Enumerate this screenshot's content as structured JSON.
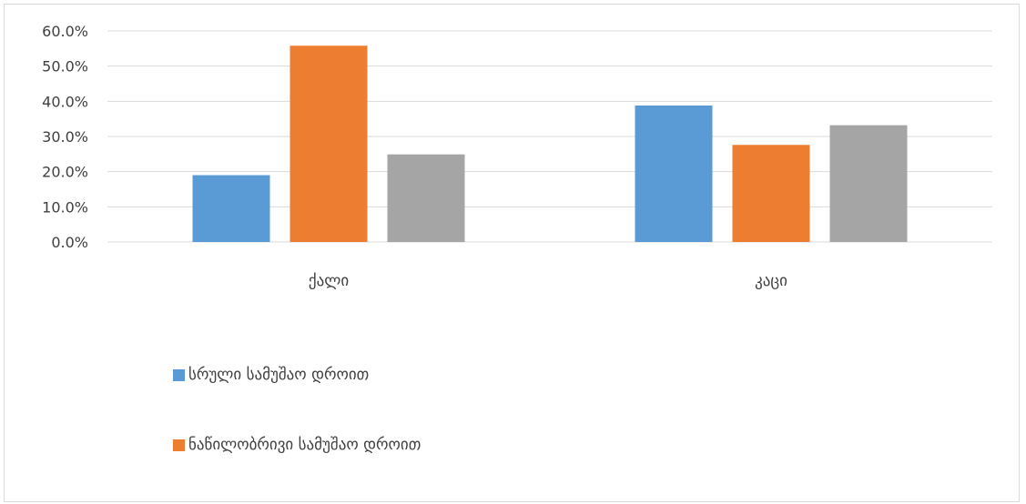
{
  "chart_data": {
    "type": "bar",
    "categories": [
      "ქალი",
      "კაცი"
    ],
    "series": [
      {
        "name": "სრული სამუშაო დროით",
        "values": [
          19.0,
          38.8
        ],
        "color": "#5b9bd5"
      },
      {
        "name": "ნაწილობრივი სამუშაო დროით",
        "values": [
          55.8,
          27.6
        ],
        "color": "#ed7d31"
      },
      {
        "name": "",
        "values": [
          24.9,
          33.2
        ],
        "color": "#a5a5a5"
      }
    ],
    "ylim": [
      0,
      60
    ],
    "yticks": [
      "0.0%",
      "10.0%",
      "20.0%",
      "30.0%",
      "40.0%",
      "50.0%",
      "60.0%"
    ],
    "grid": true,
    "legend_position": "bottom-left",
    "title": "",
    "xlabel": "",
    "ylabel": ""
  }
}
